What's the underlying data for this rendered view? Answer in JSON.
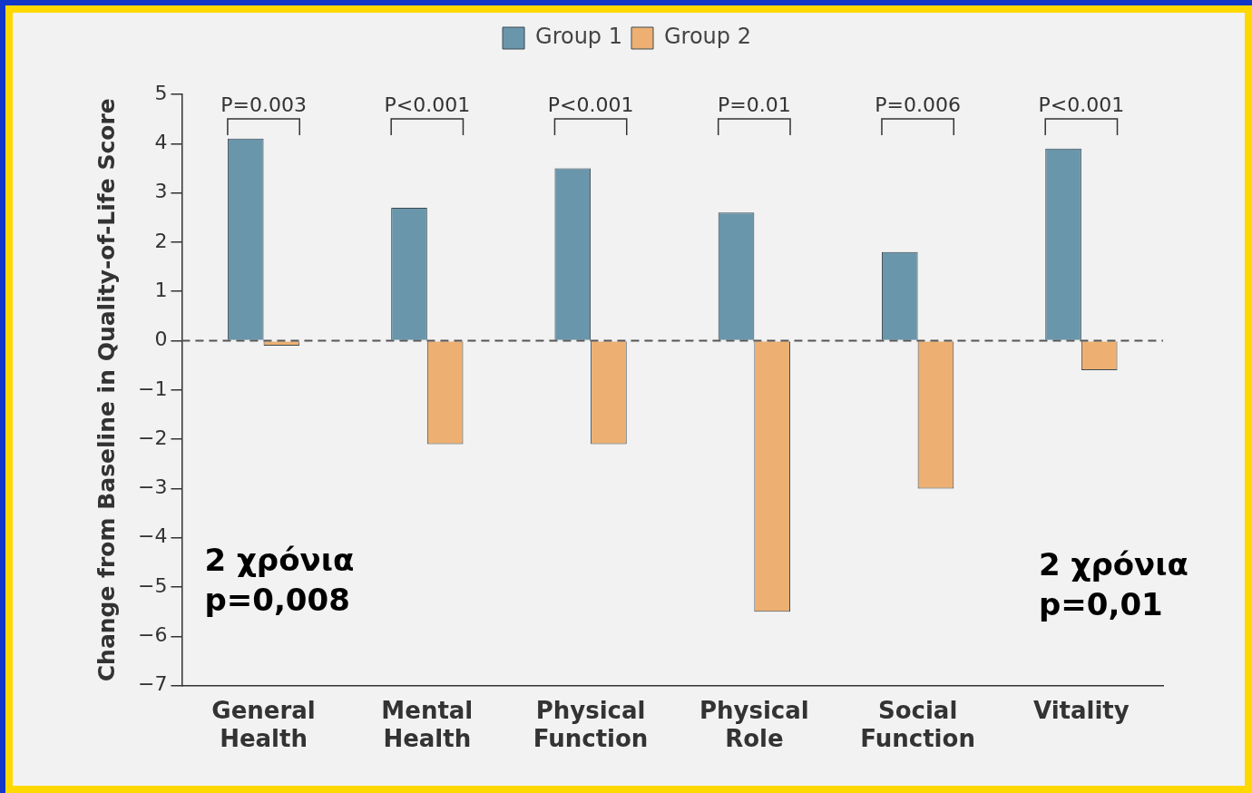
{
  "chart_data": {
    "type": "bar",
    "ylabel": "Change from Baseline in Quality-of-Life Score",
    "categories": [
      "General Health",
      "Mental Health",
      "Physical Function",
      "Physical Role",
      "Social Function",
      "Vitality"
    ],
    "series": [
      {
        "name": "Group 1",
        "color": "#6a96ab",
        "values": [
          4.1,
          2.7,
          3.5,
          2.6,
          1.8,
          3.9
        ]
      },
      {
        "name": "Group 2",
        "color": "#edb072",
        "values": [
          -0.1,
          -2.1,
          -2.1,
          -5.5,
          -3.0,
          -0.6
        ]
      }
    ],
    "ylim": [
      -7,
      5
    ],
    "yticks": [
      {
        "value": -7,
        "label": "−7"
      },
      {
        "value": -6,
        "label": "−6"
      },
      {
        "value": -5,
        "label": "−5"
      },
      {
        "value": -4,
        "label": "−4"
      },
      {
        "value": -3,
        "label": "−3"
      },
      {
        "value": -2,
        "label": "−2"
      },
      {
        "value": -1,
        "label": "−1"
      },
      0,
      1,
      2,
      3,
      4,
      5
    ],
    "grid": false,
    "legend": "top",
    "ref_lines": [
      {
        "axis": "y",
        "value": 0,
        "line_style": "dashed",
        "color": "#555555"
      }
    ],
    "annotations": [
      "P=0.003",
      "P<0.001",
      "P<0.001",
      "P=0.01",
      "P=0.006",
      "P<0.001",
      "2 χρόνια\np=0,008",
      "2 χρόνια\np=0,01"
    ]
  }
}
